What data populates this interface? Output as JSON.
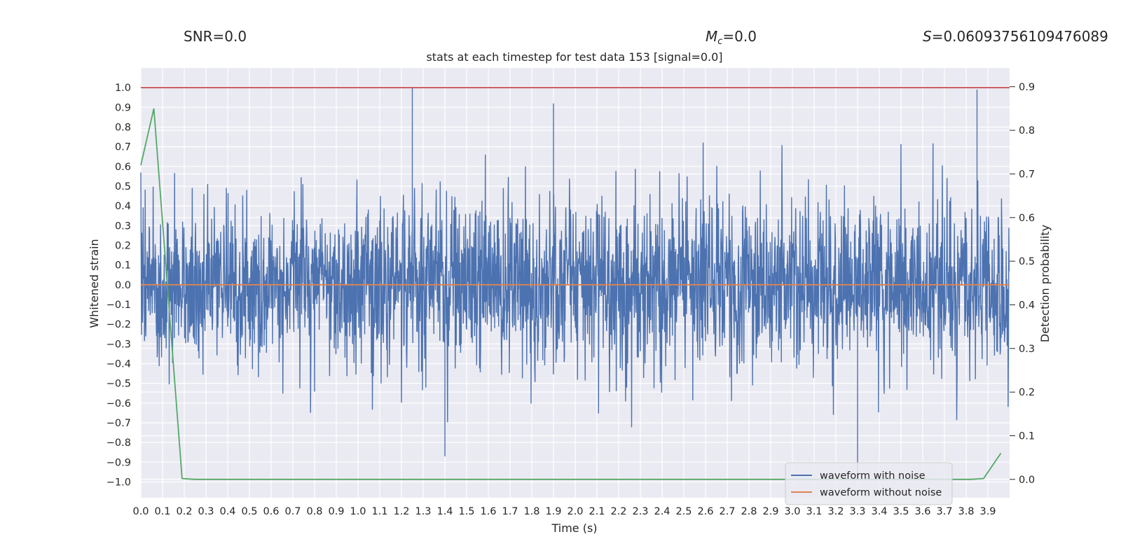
{
  "header": {
    "snr_text": "SNR=0.0",
    "mc_symbol": "M",
    "mc_sub": "c",
    "mc_value": "=0.0",
    "s_symbol": "S",
    "s_value": "=0.06093756109476089"
  },
  "chart_data": {
    "type": "line",
    "title": "stats at each timestep for test data 153 [signal=0.0]",
    "xlabel": "Time (s)",
    "ylabel_left": "Whitened strain",
    "ylabel_right": "Detection probability",
    "xlim": [
      0.0,
      4.0
    ],
    "ylim_left": [
      -1.08,
      1.1
    ],
    "ylim_right": [
      -0.042,
      0.943
    ],
    "x_ticks": [
      0.0,
      0.1,
      0.2,
      0.3,
      0.4,
      0.5,
      0.6,
      0.7,
      0.8,
      0.9,
      1.0,
      1.1,
      1.2,
      1.3,
      1.4,
      1.5,
      1.6,
      1.7,
      1.8,
      1.9,
      2.0,
      2.1,
      2.2,
      2.3,
      2.4,
      2.5,
      2.6,
      2.7,
      2.8,
      2.9,
      3.0,
      3.1,
      3.2,
      3.3,
      3.4,
      3.5,
      3.6,
      3.7,
      3.8,
      3.9
    ],
    "x_tick_labels": [
      "0.0",
      "0.1",
      "0.2",
      "0.3",
      "0.4",
      "0.5",
      "0.6",
      "0.7",
      "0.8",
      "0.9",
      "1.0",
      "1.1",
      "1.2",
      "1.3",
      "1.4",
      "1.5",
      "1.6",
      "1.7",
      "1.8",
      "1.9",
      "2.0",
      "2.1",
      "2.2",
      "2.3",
      "2.4",
      "2.5",
      "2.6",
      "2.7",
      "2.8",
      "2.9",
      "3.0",
      "3.1",
      "3.2",
      "3.3",
      "3.4",
      "3.5",
      "3.6",
      "3.7",
      "3.8",
      "3.9"
    ],
    "y_left_ticks": [
      1.0,
      0.9,
      0.8,
      0.7,
      0.6,
      0.5,
      0.4,
      0.3,
      0.2,
      0.1,
      0.0,
      -0.1,
      -0.2,
      -0.3,
      -0.4,
      -0.5,
      -0.6,
      -0.7,
      -0.8,
      -0.9,
      -1.0
    ],
    "y_left_tick_labels": [
      "1.0",
      "0.9",
      "0.8",
      "0.7",
      "0.6",
      "0.5",
      "0.4",
      "0.3",
      "0.2",
      "0.1",
      "0.0",
      "−0.1",
      "−0.2",
      "−0.3",
      "−0.4",
      "−0.5",
      "−0.6",
      "−0.7",
      "−0.8",
      "−0.9",
      "−1.0"
    ],
    "y_right_ticks": [
      0.9,
      0.8,
      0.7,
      0.6,
      0.5,
      0.4,
      0.3,
      0.2,
      0.1,
      0.0
    ],
    "y_right_tick_labels": [
      "0.9",
      "0.8",
      "0.7",
      "0.6",
      "0.5",
      "0.4",
      "0.3",
      "0.2",
      "0.1",
      "0.0"
    ],
    "grid": true,
    "legend_position": "bottom-right",
    "series": [
      {
        "name": "waveform with noise",
        "axis": "left",
        "color": "#4c72b0",
        "style": "dense noise",
        "range": [
          -0.97,
          1.0
        ],
        "approx_peaks": [
          [
            1.25,
            1.0
          ],
          [
            3.85,
            0.99
          ],
          [
            1.9,
            0.92
          ],
          [
            3.3,
            -0.97
          ],
          [
            1.4,
            -0.87
          ]
        ]
      },
      {
        "name": "waveform without noise",
        "axis": "left",
        "color": "#dd8452",
        "x": [
          0.0,
          4.0
        ],
        "y": [
          0.0,
          0.0
        ]
      },
      {
        "axis": "right",
        "color": "#55a868",
        "x": [
          0.0,
          0.06,
          0.19,
          0.25,
          0.5,
          1.0,
          2.0,
          3.0,
          3.5,
          3.75,
          3.82,
          3.88,
          3.96
        ],
        "y": [
          0.72,
          0.85,
          0.002,
          0.0,
          0.0,
          0.0,
          0.0,
          0.0,
          0.0,
          0.0,
          0.0,
          0.002,
          0.06
        ]
      },
      {
        "axis": "left",
        "color": "#c44e52",
        "x": [
          0.0,
          4.0
        ],
        "y": [
          1.0,
          1.0
        ]
      }
    ]
  }
}
